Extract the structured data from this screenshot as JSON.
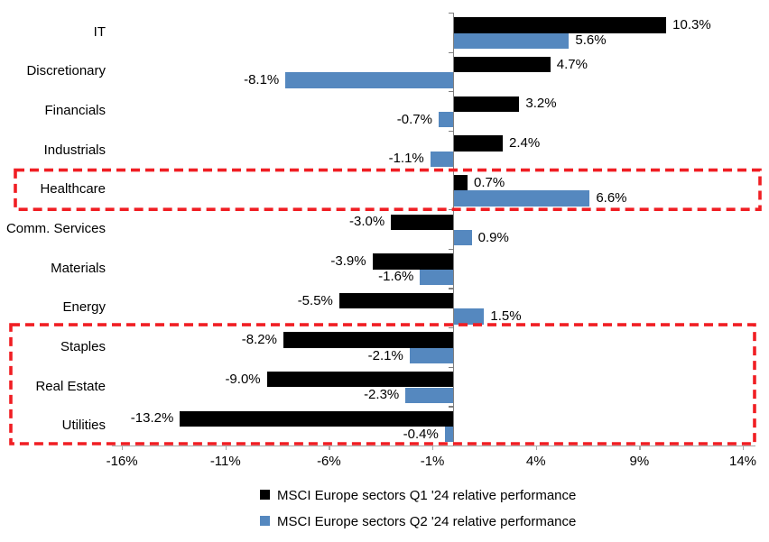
{
  "chart_data": {
    "type": "bar",
    "orientation": "horizontal",
    "title": "",
    "categories": [
      "IT",
      "Discretionary",
      "Financials",
      "Industrials",
      "Healthcare",
      "Comm. Services",
      "Materials",
      "Energy",
      "Staples",
      "Real Estate",
      "Utilities"
    ],
    "series": [
      {
        "name": "MSCI Europe sectors Q1 '24 relative performance",
        "color": "#000000",
        "values": [
          10.3,
          4.7,
          3.2,
          2.4,
          0.7,
          -3.0,
          -3.9,
          -5.5,
          -8.2,
          -9.0,
          -13.2
        ],
        "labels": [
          "10.3%",
          "4.7%",
          "3.2%",
          "2.4%",
          "0.7%",
          "-3.0%",
          "-3.9%",
          "-5.5%",
          "-8.2%",
          "-9.0%",
          "-13.2%"
        ]
      },
      {
        "name": "MSCI Europe sectors Q2 '24 relative performance",
        "color": "#5588BF",
        "values": [
          5.6,
          -8.1,
          -0.7,
          -1.1,
          6.6,
          0.9,
          -1.6,
          1.5,
          -2.1,
          -2.3,
          -0.4
        ],
        "labels": [
          "5.6%",
          "-8.1%",
          "-0.7%",
          "-1.1%",
          "6.6%",
          "0.9%",
          "-1.6%",
          "1.5%",
          "-2.1%",
          "-2.3%",
          "-0.4%"
        ]
      }
    ],
    "x_ticks": [
      "-16%",
      "-11%",
      "-6%",
      "-1%",
      "4%",
      "9%",
      "14%"
    ],
    "x_tick_values": [
      -16,
      -11,
      -6,
      -1,
      4,
      9,
      14
    ],
    "xlim": [
      -16.5,
      14.6
    ],
    "grid": false,
    "legend_position": "bottom",
    "highlights": [
      {
        "categories": [
          "Healthcare"
        ]
      },
      {
        "categories": [
          "Staples",
          "Real Estate",
          "Utilities"
        ]
      }
    ],
    "highlight_color": "#F01E23",
    "axis_color_vertical": "#7F7F7F",
    "axis_color_horizontal": "#A6A6A6"
  }
}
